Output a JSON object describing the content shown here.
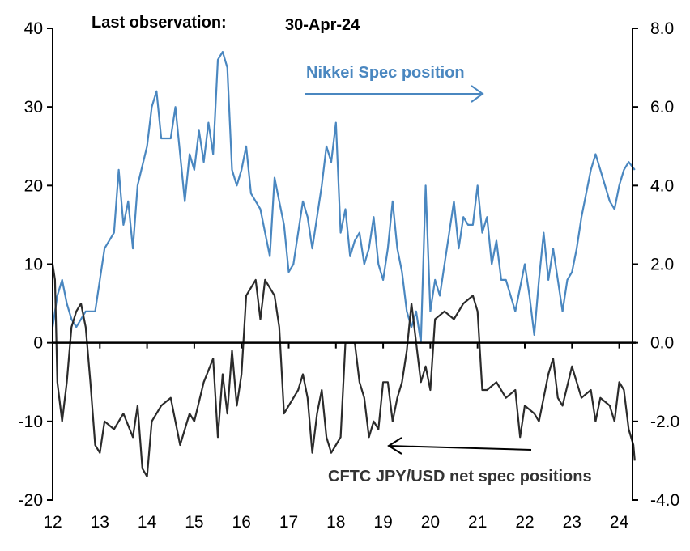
{
  "chart_data": {
    "type": "line",
    "annotations": {
      "last_obs_label": "Last observation:",
      "last_obs_date": "30-Apr-24",
      "nikkei_label": "Nikkei Spec position",
      "cftc_label": "CFTC JPY/USD net spec positions"
    },
    "x_ticks": [
      "12",
      "13",
      "14",
      "15",
      "16",
      "17",
      "18",
      "19",
      "20",
      "21",
      "22",
      "23",
      "24"
    ],
    "xlim": [
      12,
      24.33
    ],
    "y_left": {
      "lim": [
        -20,
        40
      ],
      "ticks": [
        "40",
        "30",
        "20",
        "10",
        "0",
        "-10",
        "-20"
      ]
    },
    "y_right": {
      "lim": [
        -4,
        8
      ],
      "ticks": [
        "8.0",
        "6.0",
        "4.0",
        "2.0",
        "0.0",
        "-2.0",
        "-4.0"
      ]
    },
    "series": [
      {
        "name": "Nikkei Spec position",
        "axis": "right",
        "color": "#4a87c0",
        "x": [
          12.0,
          12.1,
          12.2,
          12.3,
          12.4,
          12.5,
          12.7,
          12.9,
          13.0,
          13.1,
          13.3,
          13.4,
          13.5,
          13.6,
          13.7,
          13.8,
          14.0,
          14.1,
          14.2,
          14.3,
          14.5,
          14.6,
          14.7,
          14.8,
          14.9,
          15.0,
          15.1,
          15.2,
          15.3,
          15.4,
          15.5,
          15.6,
          15.7,
          15.8,
          15.9,
          16.0,
          16.1,
          16.2,
          16.4,
          16.6,
          16.7,
          16.8,
          16.9,
          17.0,
          17.1,
          17.3,
          17.4,
          17.5,
          17.7,
          17.8,
          17.9,
          18.0,
          18.1,
          18.2,
          18.3,
          18.4,
          18.5,
          18.6,
          18.7,
          18.8,
          18.9,
          19.0,
          19.1,
          19.2,
          19.3,
          19.4,
          19.5,
          19.6,
          19.7,
          19.8,
          19.9,
          20.0,
          20.1,
          20.2,
          20.4,
          20.5,
          20.6,
          20.7,
          20.8,
          20.9,
          21.0,
          21.1,
          21.2,
          21.3,
          21.4,
          21.5,
          21.6,
          21.8,
          22.0,
          22.1,
          22.2,
          22.3,
          22.4,
          22.5,
          22.6,
          22.8,
          22.9,
          23.0,
          23.1,
          23.2,
          23.4,
          23.5,
          23.6,
          23.8,
          23.9,
          24.0,
          24.1,
          24.2,
          24.33
        ],
        "y": [
          0.4,
          1.2,
          1.6,
          1.0,
          0.6,
          0.4,
          0.8,
          0.8,
          1.6,
          2.4,
          2.8,
          4.4,
          3.0,
          3.6,
          2.4,
          4.0,
          5.0,
          6.0,
          6.4,
          5.2,
          5.2,
          6.0,
          4.8,
          3.6,
          4.8,
          4.4,
          5.4,
          4.6,
          5.6,
          4.8,
          7.2,
          7.4,
          7.0,
          4.4,
          4.0,
          4.4,
          5.0,
          3.8,
          3.4,
          2.2,
          4.2,
          3.6,
          3.0,
          1.8,
          2.0,
          3.6,
          3.2,
          2.4,
          4.0,
          5.0,
          4.6,
          5.6,
          2.8,
          3.4,
          2.2,
          2.6,
          2.8,
          2.0,
          2.4,
          3.2,
          2.0,
          1.6,
          2.4,
          3.6,
          2.4,
          1.8,
          0.8,
          0.4,
          0.8,
          0.0,
          4.0,
          0.8,
          1.6,
          1.2,
          2.8,
          3.6,
          2.4,
          3.2,
          3.0,
          3.0,
          4.0,
          2.8,
          3.2,
          2.0,
          2.6,
          1.6,
          1.6,
          0.8,
          2.0,
          1.2,
          0.2,
          1.6,
          2.8,
          1.6,
          2.4,
          0.8,
          1.6,
          1.8,
          2.4,
          3.2,
          4.4,
          4.8,
          4.4,
          3.6,
          3.4,
          4.0,
          4.4,
          4.6,
          4.4
        ]
      },
      {
        "name": "CFTC JPY/USD net spec positions",
        "axis": "left",
        "color": "#2b2b2b",
        "x": [
          12.0,
          12.05,
          12.1,
          12.2,
          12.3,
          12.4,
          12.5,
          12.6,
          12.7,
          12.8,
          12.9,
          13.0,
          13.1,
          13.3,
          13.5,
          13.7,
          13.8,
          13.9,
          14.0,
          14.1,
          14.3,
          14.5,
          14.7,
          14.9,
          15.0,
          15.2,
          15.4,
          15.5,
          15.6,
          15.7,
          15.8,
          15.9,
          16.0,
          16.1,
          16.3,
          16.4,
          16.5,
          16.7,
          16.8,
          16.9,
          17.0,
          17.2,
          17.3,
          17.4,
          17.5,
          17.6,
          17.7,
          17.8,
          17.9,
          18.0,
          18.1,
          18.2,
          18.3,
          18.4,
          18.5,
          18.6,
          18.7,
          18.8,
          18.9,
          19.0,
          19.1,
          19.2,
          19.3,
          19.4,
          19.5,
          19.6,
          19.7,
          19.8,
          19.9,
          20.0,
          20.1,
          20.3,
          20.5,
          20.7,
          20.9,
          21.0,
          21.1,
          21.2,
          21.4,
          21.6,
          21.8,
          21.9,
          22.0,
          22.2,
          22.3,
          22.5,
          22.6,
          22.7,
          22.8,
          23.0,
          23.1,
          23.2,
          23.4,
          23.5,
          23.6,
          23.8,
          23.9,
          24.0,
          24.1,
          24.2,
          24.3,
          24.33
        ],
        "y": [
          10,
          8,
          -5,
          -10,
          -5,
          2,
          4,
          5,
          2,
          -5,
          -13,
          -14,
          -10,
          -11,
          -9,
          -12,
          -8,
          -16,
          -17,
          -10,
          -8,
          -7,
          -13,
          -9,
          -10,
          -5,
          -2,
          -12,
          -4,
          -9,
          -1,
          -8,
          -4,
          6,
          8,
          3,
          8,
          6,
          2,
          -9,
          -8,
          -6,
          -4,
          -7,
          -14,
          -9,
          -6,
          -12,
          -14,
          -13,
          -12,
          0,
          0,
          0,
          -5,
          -7,
          -12,
          -10,
          -11,
          -5,
          -5,
          -10,
          -7,
          -5,
          -1,
          5,
          0,
          -5,
          -3,
          -6,
          3,
          4,
          3,
          5,
          6,
          4,
          -6,
          -6,
          -5,
          -7,
          -6,
          -12,
          -8,
          -9,
          -10,
          -4,
          -2,
          -7,
          -8,
          -3,
          -5,
          -7,
          -6,
          -10,
          -7,
          -8,
          -10,
          -5,
          -6,
          -11,
          -13,
          -15
        ]
      }
    ]
  }
}
